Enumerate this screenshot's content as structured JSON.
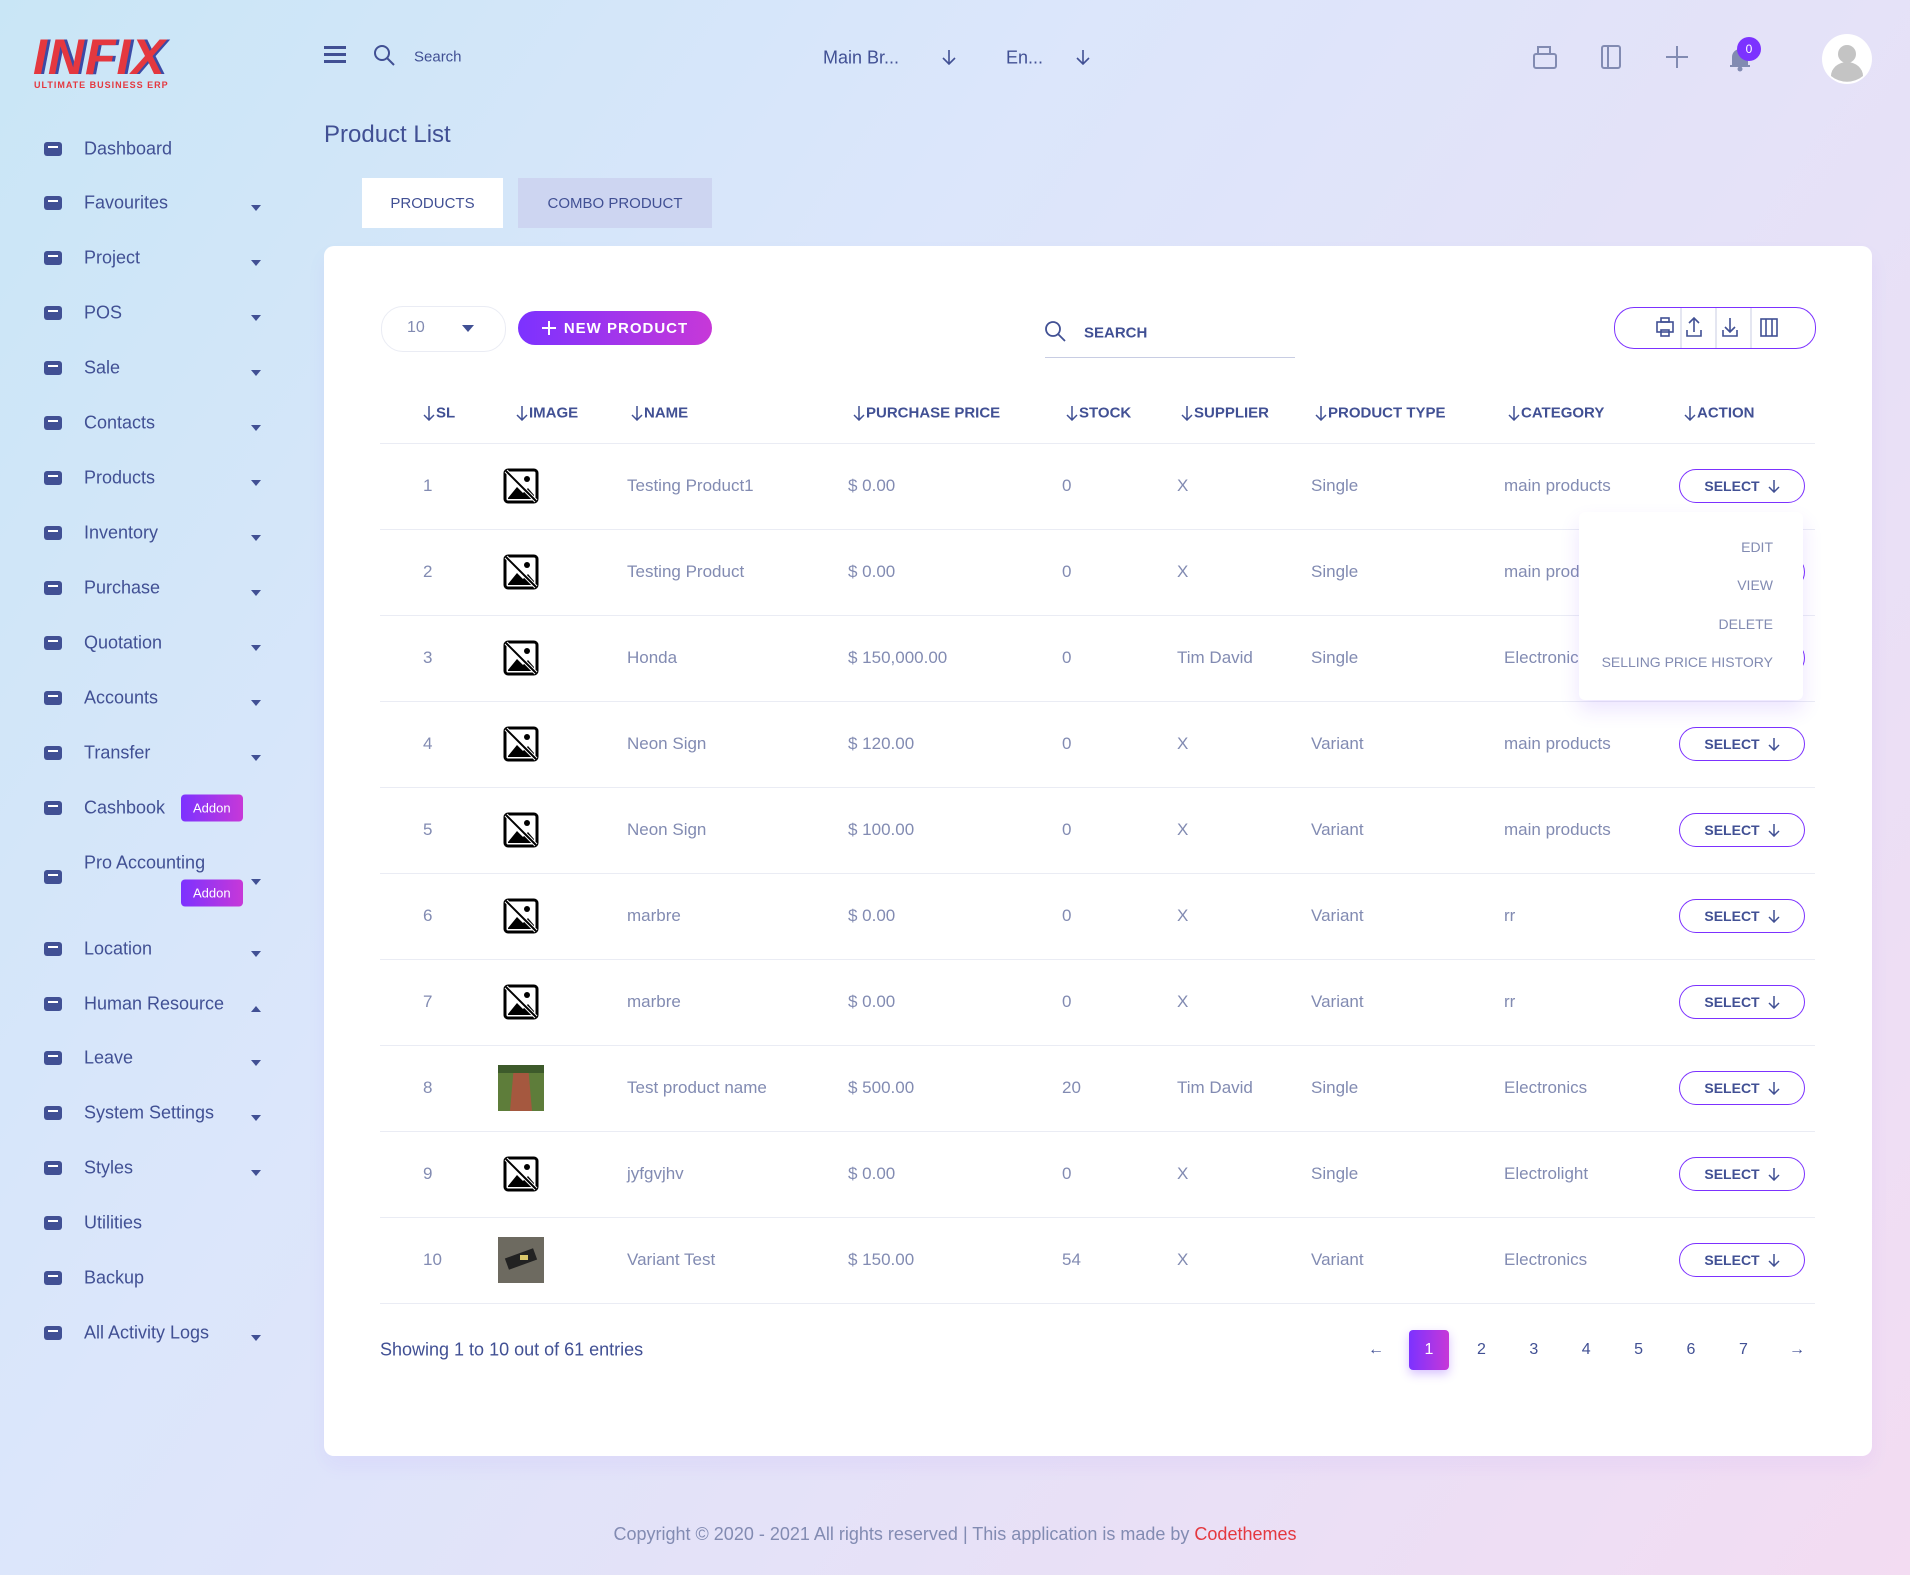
{
  "brand": {
    "logo": "INFIX",
    "tagline": "ULTIMATE BUSINESS ERP"
  },
  "topbar": {
    "search": "Search",
    "branch": "Main Br...",
    "language": "En...",
    "notifications": 0
  },
  "sidebar": {
    "items": [
      {
        "label": "Dashboard"
      },
      {
        "label": "Favourites"
      },
      {
        "label": "Project"
      },
      {
        "label": "POS"
      },
      {
        "label": "Sale"
      },
      {
        "label": "Contacts"
      },
      {
        "label": "Products"
      },
      {
        "label": "Inventory"
      },
      {
        "label": "Purchase"
      },
      {
        "label": "Quotation"
      },
      {
        "label": "Accounts"
      },
      {
        "label": "Transfer"
      },
      {
        "label": "Cashbook",
        "badge": "Addon"
      },
      {
        "label": "Pro Accounting",
        "badge": "Addon"
      },
      {
        "label": "Location"
      },
      {
        "label": "Human Resource"
      },
      {
        "label": "Leave"
      },
      {
        "label": "System Settings"
      },
      {
        "label": "Styles"
      },
      {
        "label": "Utilities"
      },
      {
        "label": "Backup"
      },
      {
        "label": "All Activity Logs"
      }
    ]
  },
  "page": {
    "title": "Product List",
    "tabs": [
      "PRODUCTS",
      "COMBO PRODUCT"
    ]
  },
  "toolbar": {
    "page_size": 10,
    "new_button": "NEW PRODUCT",
    "search": "SEARCH"
  },
  "table": {
    "columns": [
      "SL",
      "IMAGE",
      "NAME",
      "PURCHASE PRICE",
      "STOCK",
      "SUPPLIER",
      "PRODUCT TYPE",
      "CATEGORY",
      "ACTION"
    ],
    "rows": [
      [
        1,
        "Testing Product1",
        "$ 0.00",
        0,
        "X",
        "Single",
        "main products"
      ],
      [
        2,
        "Testing Product",
        "$ 0.00",
        0,
        "X",
        "Single",
        "main products"
      ],
      [
        3,
        "Honda",
        "$ 150,000.00",
        0,
        "Tim David",
        "Single",
        "Electronics"
      ],
      [
        4,
        "Neon Sign",
        "$ 120.00",
        0,
        "X",
        "Variant",
        "main products"
      ],
      [
        5,
        "Neon Sign",
        "$ 100.00",
        0,
        "X",
        "Variant",
        "main products"
      ],
      [
        6,
        "marbre",
        "$ 0.00",
        0,
        "X",
        "Variant",
        "rr"
      ],
      [
        7,
        "marbre",
        "$ 0.00",
        0,
        "X",
        "Variant",
        "rr"
      ],
      [
        8,
        "Test product name",
        "$ 500.00",
        20,
        "Tim David",
        "Single",
        "Electronics"
      ],
      [
        9,
        "jyfgvjhv",
        "$ 0.00",
        0,
        "X",
        "Single",
        "Electrolight"
      ],
      [
        10,
        "Variant Test",
        "$ 150.00",
        54,
        "X",
        "Variant",
        "Electronics"
      ]
    ],
    "action": "SELECT",
    "menu": [
      "EDIT",
      "VIEW",
      "DELETE",
      "SELLING PRICE HISTORY"
    ]
  },
  "pagination": {
    "summary": "Showing 1 to 10 out of 61 entries",
    "prev": "←",
    "pages": [
      1,
      2,
      3,
      4,
      5,
      6,
      7
    ],
    "next": "→"
  },
  "footer": {
    "copyright": "Copyright © 2020 - 2021 All rights reserved | This application is made by",
    "author": "Codethemes"
  }
}
